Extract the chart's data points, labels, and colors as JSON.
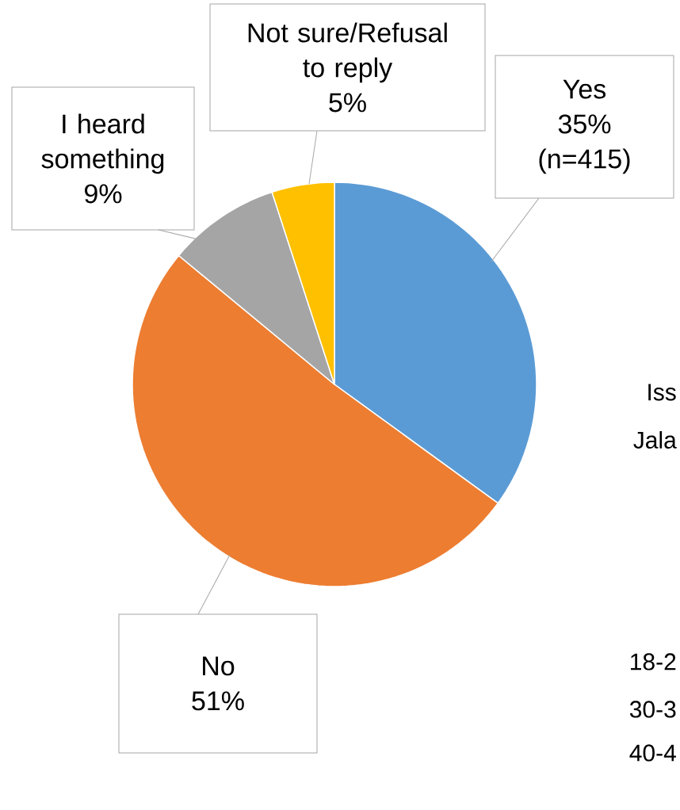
{
  "chart_data": {
    "type": "pie",
    "categories": [
      "Yes",
      "No",
      "I heard something",
      "Not sure/Refusal to reply"
    ],
    "values": [
      35,
      51,
      9,
      5
    ],
    "colors": [
      "#5b9bd5",
      "#ed7d31",
      "#a5a5a5",
      "#ffc000"
    ],
    "value_labels": [
      "35%",
      "51%",
      "9%",
      "5%"
    ],
    "annotations": [
      "(n=415)",
      "Iss",
      "Jala",
      "18-2",
      "30-3",
      "40-4"
    ]
  }
}
